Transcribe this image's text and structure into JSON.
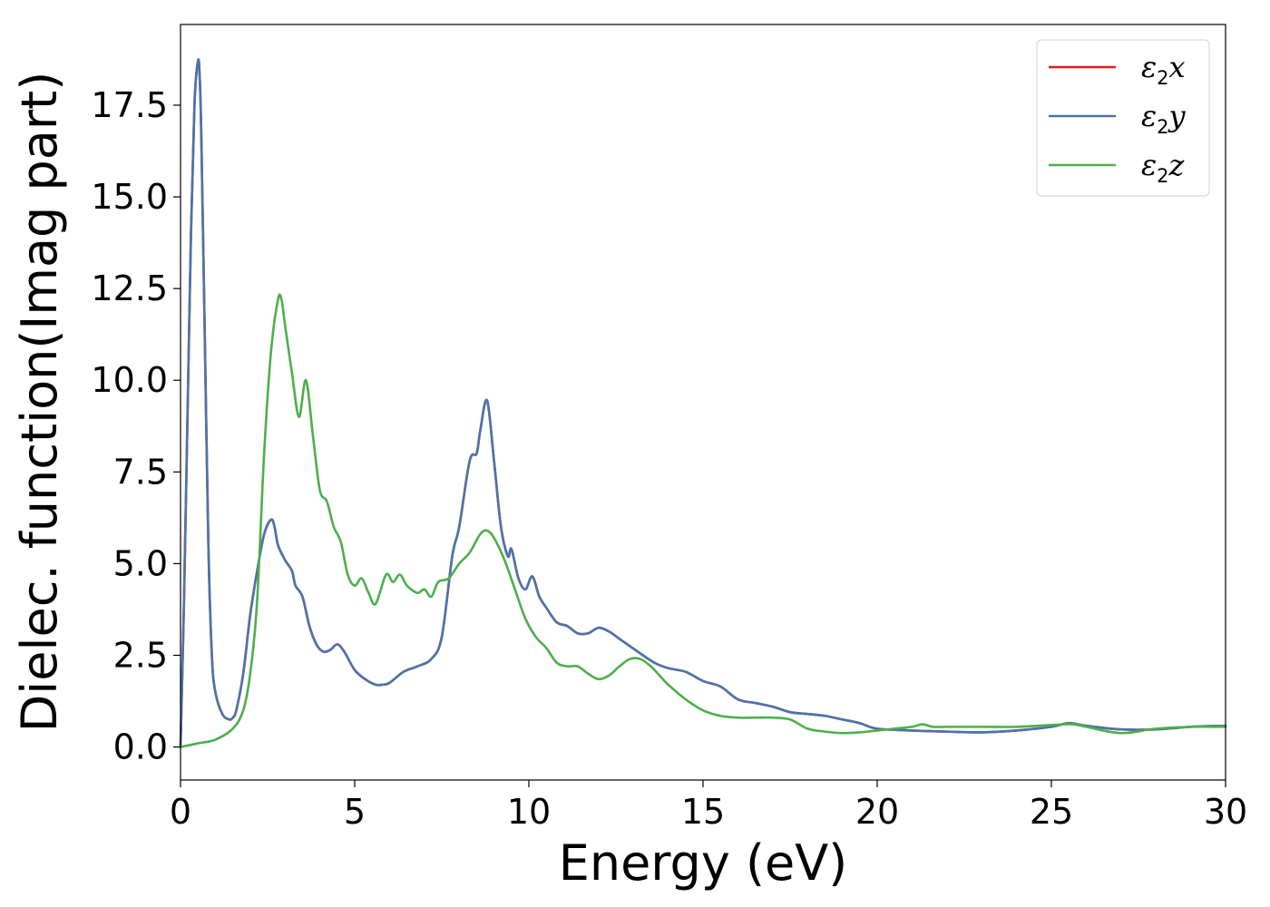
{
  "chart_data": {
    "type": "line",
    "xlabel": "Energy (eV)",
    "ylabel": "Dielec. function(Imag part)",
    "xlim": [
      0,
      30
    ],
    "ylim": [
      -0.9,
      19.7
    ],
    "xticks": [
      0,
      5,
      10,
      15,
      20,
      25,
      30
    ],
    "xtick_labels": [
      "0",
      "5",
      "10",
      "15",
      "20",
      "25",
      "30"
    ],
    "yticks": [
      0.0,
      2.5,
      5.0,
      7.5,
      10.0,
      12.5,
      15.0,
      17.5
    ],
    "ytick_labels": [
      "0.0",
      "2.5",
      "5.0",
      "7.5",
      "10.0",
      "12.5",
      "15.0",
      "17.5"
    ],
    "grid": false,
    "legend_position": "top-right",
    "series": [
      {
        "name": "ε2x",
        "name_base": "ε",
        "name_sub": "2",
        "name_var": "x",
        "color": "#e41a1c",
        "x": [
          0,
          0.1,
          0.2,
          0.3,
          0.4,
          0.5,
          0.55,
          0.6,
          0.7,
          0.8,
          0.9,
          1.0,
          1.2,
          1.4,
          1.5,
          1.6,
          1.8,
          2.0,
          2.2,
          2.4,
          2.6,
          2.7,
          2.8,
          3.0,
          3.2,
          3.3,
          3.5,
          3.7,
          3.9,
          4.1,
          4.3,
          4.5,
          4.7,
          5.0,
          5.3,
          5.6,
          5.8,
          6.0,
          6.4,
          6.8,
          7.2,
          7.5,
          7.8,
          8.0,
          8.3,
          8.5,
          8.6,
          8.8,
          9.0,
          9.2,
          9.4,
          9.5,
          9.7,
          9.9,
          10.1,
          10.3,
          10.5,
          10.8,
          11.1,
          11.4,
          11.7,
          12.0,
          12.3,
          12.6,
          12.9,
          13.2,
          13.6,
          14.0,
          14.5,
          15.0,
          15.5,
          16.0,
          16.5,
          17.0,
          17.5,
          18.0,
          18.5,
          19.0,
          19.5,
          20.0,
          21.0,
          22.0,
          23.0,
          24.0,
          25.0,
          25.5,
          26.0,
          27.0,
          28.0,
          29.0,
          30.0
        ],
        "y": [
          0.0,
          4.0,
          9.0,
          14.0,
          17.5,
          18.7,
          18.3,
          16.5,
          11.0,
          5.5,
          2.5,
          1.5,
          0.9,
          0.75,
          0.8,
          1.0,
          2.0,
          3.6,
          4.8,
          5.8,
          6.2,
          6.0,
          5.5,
          5.1,
          4.8,
          4.4,
          4.1,
          3.3,
          2.8,
          2.6,
          2.65,
          2.8,
          2.6,
          2.1,
          1.85,
          1.7,
          1.7,
          1.75,
          2.05,
          2.2,
          2.4,
          3.0,
          5.2,
          6.0,
          7.8,
          8.0,
          8.6,
          9.45,
          7.8,
          6.0,
          5.2,
          5.4,
          4.6,
          4.3,
          4.65,
          4.1,
          3.8,
          3.4,
          3.3,
          3.1,
          3.1,
          3.25,
          3.15,
          2.95,
          2.75,
          2.55,
          2.3,
          2.15,
          2.05,
          1.8,
          1.65,
          1.3,
          1.2,
          1.1,
          0.95,
          0.9,
          0.85,
          0.75,
          0.65,
          0.5,
          0.45,
          0.42,
          0.4,
          0.45,
          0.55,
          0.65,
          0.58,
          0.48,
          0.48,
          0.55,
          0.58
        ]
      },
      {
        "name": "ε2y",
        "name_base": "ε",
        "name_sub": "2",
        "name_var": "y",
        "color": "#4a74aa",
        "x": [
          0,
          0.1,
          0.2,
          0.3,
          0.4,
          0.5,
          0.55,
          0.6,
          0.7,
          0.8,
          0.9,
          1.0,
          1.2,
          1.4,
          1.5,
          1.6,
          1.8,
          2.0,
          2.2,
          2.4,
          2.6,
          2.7,
          2.8,
          3.0,
          3.2,
          3.3,
          3.5,
          3.7,
          3.9,
          4.1,
          4.3,
          4.5,
          4.7,
          5.0,
          5.3,
          5.6,
          5.8,
          6.0,
          6.4,
          6.8,
          7.2,
          7.5,
          7.8,
          8.0,
          8.3,
          8.5,
          8.6,
          8.8,
          9.0,
          9.2,
          9.4,
          9.5,
          9.7,
          9.9,
          10.1,
          10.3,
          10.5,
          10.8,
          11.1,
          11.4,
          11.7,
          12.0,
          12.3,
          12.6,
          12.9,
          13.2,
          13.6,
          14.0,
          14.5,
          15.0,
          15.5,
          16.0,
          16.5,
          17.0,
          17.5,
          18.0,
          18.5,
          19.0,
          19.5,
          20.0,
          21.0,
          22.0,
          23.0,
          24.0,
          25.0,
          25.5,
          26.0,
          27.0,
          28.0,
          29.0,
          30.0
        ],
        "y": [
          0.0,
          4.0,
          9.0,
          14.0,
          17.5,
          18.7,
          18.3,
          16.5,
          11.0,
          5.5,
          2.5,
          1.5,
          0.9,
          0.75,
          0.8,
          1.0,
          2.0,
          3.6,
          4.8,
          5.8,
          6.2,
          6.0,
          5.5,
          5.1,
          4.8,
          4.4,
          4.1,
          3.3,
          2.8,
          2.6,
          2.65,
          2.8,
          2.6,
          2.1,
          1.85,
          1.7,
          1.7,
          1.75,
          2.05,
          2.2,
          2.4,
          3.0,
          5.2,
          6.0,
          7.8,
          8.0,
          8.6,
          9.45,
          7.8,
          6.0,
          5.2,
          5.4,
          4.6,
          4.3,
          4.65,
          4.1,
          3.8,
          3.4,
          3.3,
          3.1,
          3.1,
          3.25,
          3.15,
          2.95,
          2.75,
          2.55,
          2.3,
          2.15,
          2.05,
          1.8,
          1.65,
          1.3,
          1.2,
          1.1,
          0.95,
          0.9,
          0.85,
          0.75,
          0.65,
          0.5,
          0.45,
          0.42,
          0.4,
          0.45,
          0.55,
          0.65,
          0.58,
          0.48,
          0.48,
          0.55,
          0.58
        ]
      },
      {
        "name": "ε2z",
        "name_base": "ε",
        "name_sub": "2",
        "name_var": "z",
        "color": "#4daf4a",
        "x": [
          0,
          0.5,
          1.0,
          1.5,
          1.8,
          2.0,
          2.2,
          2.4,
          2.6,
          2.8,
          2.9,
          3.0,
          3.2,
          3.4,
          3.6,
          3.8,
          4.0,
          4.2,
          4.4,
          4.6,
          4.8,
          5.0,
          5.2,
          5.4,
          5.6,
          5.9,
          6.1,
          6.3,
          6.5,
          6.8,
          7.0,
          7.2,
          7.4,
          7.7,
          8.0,
          8.3,
          8.6,
          8.8,
          9.0,
          9.3,
          9.6,
          9.9,
          10.2,
          10.5,
          10.8,
          11.1,
          11.4,
          11.7,
          12.0,
          12.3,
          12.6,
          12.9,
          13.2,
          13.5,
          13.8,
          14.0,
          14.5,
          15.0,
          15.5,
          16.0,
          16.5,
          17.0,
          17.5,
          18.0,
          18.5,
          19.0,
          19.5,
          20.0,
          20.5,
          21.0,
          21.3,
          21.6,
          22.0,
          23.0,
          24.0,
          25.0,
          25.6,
          26.0,
          27.0,
          28.0,
          29.0,
          30.0
        ],
        "y": [
          0.0,
          0.1,
          0.2,
          0.5,
          1.0,
          2.0,
          4.0,
          8.0,
          10.8,
          12.2,
          12.2,
          11.5,
          10.2,
          9.0,
          10.0,
          8.5,
          7.0,
          6.7,
          6.0,
          5.6,
          4.7,
          4.4,
          4.6,
          4.2,
          3.9,
          4.7,
          4.5,
          4.7,
          4.4,
          4.2,
          4.3,
          4.1,
          4.5,
          4.6,
          5.0,
          5.3,
          5.8,
          5.9,
          5.7,
          5.1,
          4.3,
          3.5,
          3.0,
          2.7,
          2.3,
          2.2,
          2.2,
          2.0,
          1.85,
          1.95,
          2.2,
          2.4,
          2.4,
          2.2,
          1.9,
          1.7,
          1.3,
          1.0,
          0.85,
          0.8,
          0.8,
          0.8,
          0.75,
          0.5,
          0.42,
          0.38,
          0.4,
          0.45,
          0.5,
          0.55,
          0.62,
          0.55,
          0.55,
          0.55,
          0.55,
          0.6,
          0.62,
          0.55,
          0.38,
          0.5,
          0.55,
          0.55
        ]
      }
    ]
  }
}
